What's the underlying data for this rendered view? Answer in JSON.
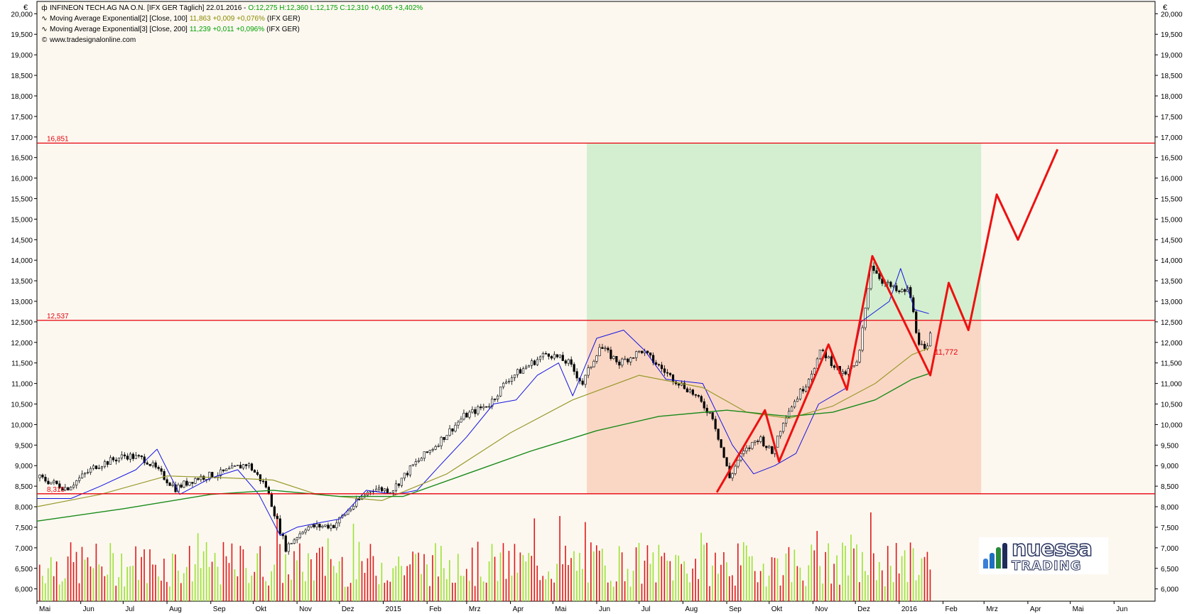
{
  "currency_symbol": "€",
  "legend": {
    "line1": "INFINEON TECH.AG NA O.N. [IFX GER  Täglich] 22.01.2016 -",
    "line1_values": "O:12,275 H:12,360 L:12,175 C:12,310 +0,405 +3,402%",
    "line2": "Moving Average Exponential[2] [Close, 100]",
    "line2_values": "11,863 +0,009 +0,076%",
    "line2_suffix": "(IFX GER)",
    "line3": "Moving Average Exponential[3] [Close, 200]",
    "line3_values": "11,239 +0,011 +0,096%",
    "line3_suffix": "(IFX GER)",
    "source": "www.tradesignalonline.com",
    "icons": [
      "candlestick-icon",
      "ma-line-icon",
      "ma-line-icon",
      "copyright-icon"
    ]
  },
  "logo": {
    "line1": "nuessa",
    "line2": "TRADING"
  },
  "colors": {
    "up_candle": "#ffffff",
    "down_candle": "#000000",
    "ema100": "#9a9a2e",
    "ema200": "#1a8a1a",
    "volume_up": "#9be233",
    "volume_down": "#e01818",
    "level_line": "#e8000b",
    "zigzag": "#ee1111",
    "green_zone": "#d3efcf",
    "red_zone": "#fad7c5",
    "chart_bg": "#fcf8f0",
    "blue_line": "#1515e0"
  },
  "chart_data": {
    "type": "candlestick",
    "instrument": "INFINEON TECH.AG NA O.N.",
    "y_ticks": [
      "20,000",
      "19,500",
      "19,000",
      "18,500",
      "18,000",
      "17,500",
      "17,000",
      "16,500",
      "16,000",
      "15,500",
      "15,000",
      "14,500",
      "14,000",
      "13,500",
      "13,000",
      "12,500",
      "12,000",
      "11,500",
      "11,000",
      "10,500",
      "10,000",
      "9,500",
      "9,000",
      "8,500",
      "8,000",
      "7,500",
      "7,000",
      "6,500",
      "6,000"
    ],
    "ylim": [
      5700,
      20300
    ],
    "x_ticks": [
      "Mai",
      "Jun",
      "Jul",
      "Aug",
      "Sep",
      "Okt",
      "Nov",
      "Dez",
      "2015",
      "Feb",
      "Mrz",
      "Apr",
      "Mai",
      "Jun",
      "Jul",
      "Aug",
      "Sep",
      "Okt",
      "Nov",
      "Dez",
      "2016",
      "Feb",
      "Mrz",
      "Apr",
      "Mai",
      "Jun"
    ],
    "x_range": [
      "2014-05-01",
      "2016-06-30"
    ],
    "levels": [
      {
        "label": "16,851",
        "value": 16851
      },
      {
        "label": "12,537",
        "value": 12537
      },
      {
        "label": "8,315",
        "value": 8315
      }
    ],
    "price_label": {
      "label": "11,772",
      "value": 11772
    },
    "zones": [
      {
        "name": "profit-zone",
        "from": "2015-05-25",
        "to": "2016-02-28",
        "y": [
          12537,
          16851
        ]
      },
      {
        "name": "loss-zone",
        "from": "2015-05-25",
        "to": "2016-02-28",
        "y": [
          8315,
          12537
        ]
      }
    ],
    "price_path": [
      [
        "2014-05-01",
        8700
      ],
      [
        "2014-05-20",
        8450
      ],
      [
        "2014-06-10",
        9000
      ],
      [
        "2014-07-01",
        9250
      ],
      [
        "2014-07-15",
        9150
      ],
      [
        "2014-08-05",
        8450
      ],
      [
        "2014-08-20",
        8700
      ],
      [
        "2014-09-05",
        8800
      ],
      [
        "2014-09-25",
        9050
      ],
      [
        "2014-10-08",
        8500
      ],
      [
        "2014-10-22",
        7000
      ],
      [
        "2014-11-05",
        7500
      ],
      [
        "2014-11-25",
        7550
      ],
      [
        "2014-12-08",
        8000
      ],
      [
        "2014-12-22",
        8450
      ],
      [
        "2015-01-05",
        8400
      ],
      [
        "2015-01-20",
        9000
      ],
      [
        "2015-02-05",
        9500
      ],
      [
        "2015-02-25",
        10200
      ],
      [
        "2015-03-15",
        10500
      ],
      [
        "2015-03-28",
        11100
      ],
      [
        "2015-04-10",
        11400
      ],
      [
        "2015-04-25",
        11750
      ],
      [
        "2015-05-10",
        11500
      ],
      [
        "2015-05-20",
        11000
      ],
      [
        "2015-06-01",
        11900
      ],
      [
        "2015-06-15",
        11500
      ],
      [
        "2015-07-01",
        11800
      ],
      [
        "2015-07-20",
        11200
      ],
      [
        "2015-08-05",
        10800
      ],
      [
        "2015-08-20",
        10200
      ],
      [
        "2015-09-01",
        8700
      ],
      [
        "2015-09-08",
        9200
      ],
      [
        "2015-09-22",
        9700
      ],
      [
        "2015-10-01",
        9300
      ],
      [
        "2015-10-10",
        10200
      ],
      [
        "2015-10-25",
        11000
      ],
      [
        "2015-11-05",
        11800
      ],
      [
        "2015-11-20",
        11200
      ],
      [
        "2015-12-01",
        11500
      ],
      [
        "2015-12-10",
        13900
      ],
      [
        "2015-12-18",
        13500
      ],
      [
        "2015-12-30",
        13200
      ],
      [
        "2016-01-06",
        13300
      ],
      [
        "2016-01-12",
        12100
      ],
      [
        "2016-01-18",
        11700
      ],
      [
        "2016-01-22",
        12310
      ]
    ],
    "ema100": [
      [
        "2014-05-01",
        8000
      ],
      [
        "2014-06-15",
        8300
      ],
      [
        "2014-08-01",
        8750
      ],
      [
        "2014-09-15",
        8700
      ],
      [
        "2014-10-15",
        8650
      ],
      [
        "2014-11-15",
        8300
      ],
      [
        "2014-12-31",
        8150
      ],
      [
        "2015-02-15",
        8800
      ],
      [
        "2015-04-01",
        9800
      ],
      [
        "2015-05-15",
        10600
      ],
      [
        "2015-07-01",
        11200
      ],
      [
        "2015-08-15",
        10900
      ],
      [
        "2015-09-15",
        10300
      ],
      [
        "2015-10-15",
        10150
      ],
      [
        "2015-11-15",
        10450
      ],
      [
        "2015-12-15",
        11000
      ],
      [
        "2016-01-10",
        11700
      ],
      [
        "2016-01-22",
        11863
      ]
    ],
    "ema200": [
      [
        "2014-05-01",
        7650
      ],
      [
        "2014-07-01",
        7950
      ],
      [
        "2014-09-01",
        8300
      ],
      [
        "2014-10-15",
        8400
      ],
      [
        "2014-12-01",
        8250
      ],
      [
        "2015-01-15",
        8250
      ],
      [
        "2015-03-01",
        8800
      ],
      [
        "2015-04-15",
        9350
      ],
      [
        "2015-06-01",
        9850
      ],
      [
        "2015-07-15",
        10200
      ],
      [
        "2015-09-01",
        10350
      ],
      [
        "2015-10-15",
        10200
      ],
      [
        "2015-11-15",
        10300
      ],
      [
        "2015-12-15",
        10600
      ],
      [
        "2016-01-10",
        11100
      ],
      [
        "2016-01-22",
        11239
      ]
    ],
    "blue_line": [
      [
        "2014-05-01",
        8200
      ],
      [
        "2014-05-25",
        8200
      ],
      [
        "2014-06-15",
        8500
      ],
      [
        "2014-07-10",
        8900
      ],
      [
        "2014-07-25",
        9400
      ],
      [
        "2014-08-10",
        8300
      ],
      [
        "2014-09-01",
        8700
      ],
      [
        "2014-09-20",
        8900
      ],
      [
        "2014-10-05",
        8300
      ],
      [
        "2014-10-20",
        7300
      ],
      [
        "2014-11-01",
        7500
      ],
      [
        "2014-11-15",
        7600
      ],
      [
        "2014-12-01",
        7700
      ],
      [
        "2014-12-20",
        8400
      ],
      [
        "2015-01-10",
        8300
      ],
      [
        "2015-01-25",
        8400
      ],
      [
        "2015-02-10",
        9000
      ],
      [
        "2015-03-01",
        9700
      ],
      [
        "2015-03-20",
        10500
      ],
      [
        "2015-04-05",
        10600
      ],
      [
        "2015-04-20",
        11200
      ],
      [
        "2015-05-05",
        11500
      ],
      [
        "2015-05-15",
        10700
      ],
      [
        "2015-06-01",
        12100
      ],
      [
        "2015-06-20",
        12300
      ],
      [
        "2015-07-05",
        11800
      ],
      [
        "2015-07-20",
        11100
      ],
      [
        "2015-08-15",
        11000
      ],
      [
        "2015-09-05",
        9500
      ],
      [
        "2015-09-20",
        8800
      ],
      [
        "2015-10-05",
        9000
      ],
      [
        "2015-10-20",
        9300
      ],
      [
        "2015-11-05",
        10500
      ],
      [
        "2015-11-25",
        10900
      ],
      [
        "2015-12-05",
        12500
      ],
      [
        "2015-12-25",
        13000
      ],
      [
        "2016-01-02",
        13800
      ],
      [
        "2016-01-12",
        12800
      ],
      [
        "2016-01-22",
        12700
      ]
    ],
    "zigzag": [
      [
        "2015-08-25",
        8350
      ],
      [
        "2015-09-28",
        10350
      ],
      [
        "2015-10-08",
        9100
      ],
      [
        "2015-11-12",
        11950
      ],
      [
        "2015-11-25",
        10850
      ],
      [
        "2015-12-13",
        14100
      ],
      [
        "2016-01-23",
        11200
      ],
      [
        "2016-02-05",
        13450
      ],
      [
        "2016-02-19",
        12300
      ],
      [
        "2016-03-10",
        15600
      ],
      [
        "2016-03-25",
        14500
      ],
      [
        "2016-04-22",
        16700
      ]
    ]
  }
}
